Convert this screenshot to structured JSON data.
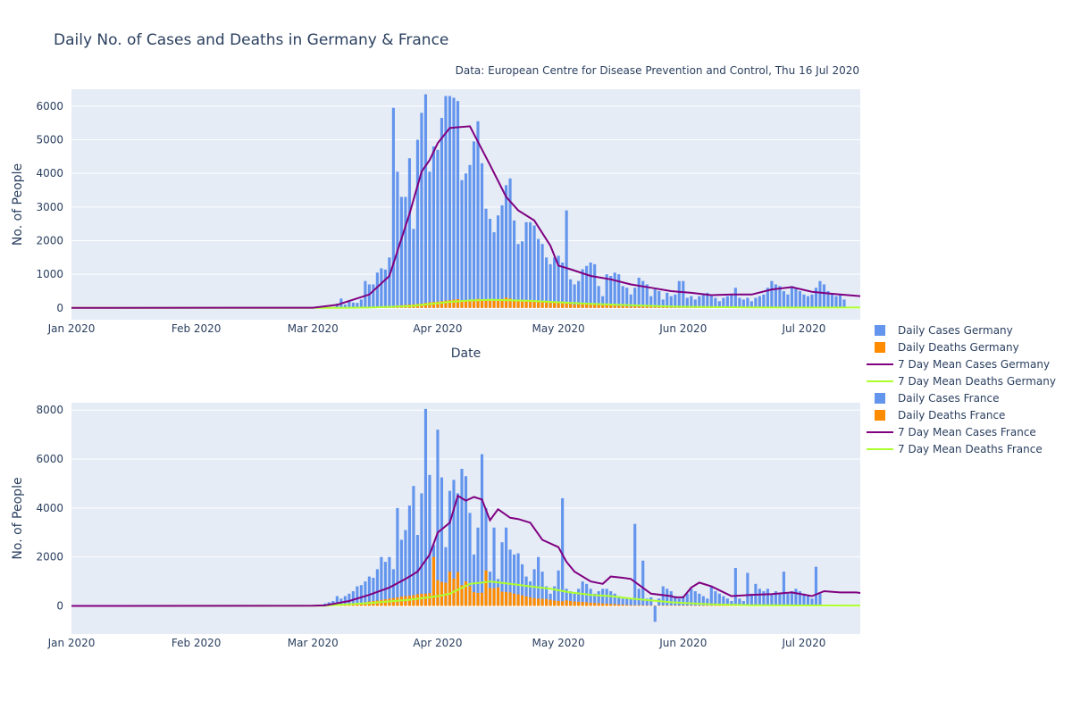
{
  "colors": {
    "daily_cases": "#6495ed",
    "daily_deaths": "#ff8c00",
    "mean_cases": "#800080",
    "mean_deaths": "#adff2f",
    "plot_bg": "#e5ecf6",
    "grid": "#ffffff",
    "text": "#2a3f5f"
  },
  "chart_data": {
    "type": "bar",
    "title": "Daily No. of Cases and Deaths in Germany & France",
    "source_note": "Data: European Centre for Disease Prevention and Control, Thu 16 Jul 2020",
    "x_ticks": [
      "Jan 2020",
      "Feb 2020",
      "Mar 2020",
      "Apr 2020",
      "May 2020",
      "Jun 2020",
      "Jul 2020"
    ],
    "x_tick_days": [
      1,
      32,
      61,
      92,
      122,
      153,
      183
    ],
    "x_range_days": [
      1,
      197
    ],
    "legend": [
      {
        "label": "Daily Cases Germany",
        "kind": "bar",
        "color_key": "daily_cases"
      },
      {
        "label": "Daily Deaths Germany",
        "kind": "bar",
        "color_key": "daily_deaths"
      },
      {
        "label": "7 Day Mean Cases Germany",
        "kind": "line",
        "color_key": "mean_cases"
      },
      {
        "label": "7 Day Mean Deaths Germany",
        "kind": "line",
        "color_key": "mean_deaths"
      },
      {
        "label": "Daily Cases France",
        "kind": "bar",
        "color_key": "daily_cases"
      },
      {
        "label": "Daily Deaths France",
        "kind": "bar",
        "color_key": "daily_deaths"
      },
      {
        "label": "7 Day Mean Cases France",
        "kind": "line",
        "color_key": "mean_cases"
      },
      {
        "label": "7 Day Mean Deaths France",
        "kind": "line",
        "color_key": "mean_deaths"
      }
    ],
    "subplots": [
      {
        "country": "Germany",
        "xlabel": "Date",
        "ylabel": "No. of People",
        "ylim": [
          -350,
          6500
        ],
        "y_ticks": [
          0,
          1000,
          2000,
          3000,
          4000,
          5000,
          6000
        ],
        "start_day": 67,
        "cases": [
          130,
          280,
          100,
          200,
          160,
          150,
          250,
          800,
          700,
          700,
          1050,
          1180,
          1140,
          1500,
          5950,
          4050,
          3300,
          3300,
          4450,
          2350,
          5000,
          5800,
          6350,
          4050,
          4800,
          4700,
          5650,
          6300,
          6300,
          6250,
          6150,
          3800,
          4000,
          4250,
          4950,
          5550,
          4300,
          2950,
          2650,
          2250,
          2750,
          3050,
          3650,
          3850,
          2600,
          1900,
          1980,
          2550,
          2550,
          2450,
          2050,
          1900,
          1500,
          1300,
          1500,
          1550,
          1350,
          2900,
          850,
          700,
          800,
          1150,
          1250,
          1350,
          1300,
          650,
          350,
          1000,
          950,
          1050,
          1000,
          650,
          600,
          400,
          600,
          900,
          800,
          700,
          350,
          550,
          500,
          250,
          450,
          350,
          400,
          800,
          800,
          300,
          350,
          250,
          350,
          400,
          450,
          350,
          300,
          200,
          300,
          350,
          400,
          600,
          300,
          250,
          300,
          200,
          300,
          350,
          400,
          600,
          800,
          700,
          650,
          500,
          400,
          650,
          600,
          500,
          400,
          350,
          400,
          600,
          800,
          700,
          500,
          400,
          350,
          400,
          250
        ],
        "deaths": [
          1,
          1,
          2,
          2,
          3,
          5,
          6,
          10,
          15,
          20,
          25,
          30,
          40,
          50,
          60,
          70,
          80,
          90,
          100,
          110,
          120,
          130,
          150,
          170,
          180,
          190,
          200,
          220,
          230,
          250,
          260,
          210,
          220,
          230,
          250,
          270,
          240,
          230,
          220,
          210,
          250,
          270,
          310,
          280,
          220,
          200,
          190,
          220,
          230,
          210,
          200,
          190,
          170,
          150,
          160,
          170,
          140,
          150,
          120,
          100,
          110,
          130,
          140,
          120,
          110,
          100,
          80,
          90,
          80,
          70,
          60,
          60,
          50,
          40,
          50,
          40,
          45,
          40,
          35,
          30,
          30,
          25,
          25,
          20,
          20,
          25,
          25,
          20,
          15,
          15,
          15,
          15,
          20,
          15,
          15,
          10,
          10,
          10,
          10,
          15,
          10,
          10,
          10,
          10,
          10,
          10,
          10,
          10,
          10,
          10,
          10,
          10,
          10,
          10,
          10,
          10,
          10,
          10,
          10,
          10,
          10,
          10,
          10,
          10,
          10,
          10,
          10,
          10,
          10,
          10
        ],
        "mean_cases_x": [
          1,
          61,
          67,
          75,
          80,
          85,
          88,
          90,
          92,
          95,
          100,
          105,
          109,
          112,
          116,
          120,
          122,
          125,
          130,
          135,
          140,
          145,
          150,
          155,
          160,
          165,
          170,
          175,
          180,
          185,
          190,
          194,
          197
        ],
        "mean_cases_y": [
          0,
          5,
          90,
          400,
          950,
          2800,
          4050,
          4400,
          4900,
          5350,
          5400,
          4250,
          3300,
          2900,
          2600,
          1850,
          1260,
          1150,
          950,
          850,
          700,
          600,
          500,
          450,
          380,
          400,
          400,
          550,
          620,
          480,
          420,
          380,
          350
        ],
        "mean_deaths_x": [
          1,
          67,
          75,
          85,
          95,
          100,
          105,
          110,
          115,
          120,
          130,
          140,
          150,
          160,
          170,
          180,
          197
        ],
        "mean_deaths_y": [
          0,
          1,
          10,
          50,
          180,
          220,
          240,
          230,
          210,
          180,
          120,
          80,
          40,
          25,
          15,
          10,
          10
        ]
      },
      {
        "country": "France",
        "xlabel": "",
        "ylabel": "No. of People",
        "ylim": [
          -1150,
          8300
        ],
        "y_ticks": [
          0,
          2000,
          4000,
          6000,
          8000
        ],
        "start_day": 64,
        "cases": [
          100,
          150,
          200,
          400,
          300,
          400,
          500,
          600,
          800,
          850,
          1000,
          1200,
          1150,
          1500,
          2000,
          1800,
          2000,
          1500,
          4000,
          2700,
          3100,
          4100,
          4900,
          2900,
          4600,
          8050,
          5350,
          2500,
          7200,
          5250,
          2400,
          4700,
          5150,
          4600,
          5600,
          5300,
          3800,
          2100,
          3200,
          6200,
          4000,
          1400,
          3200,
          1100,
          2600,
          3200,
          2300,
          2100,
          2150,
          1700,
          1200,
          1000,
          1500,
          2000,
          1400,
          800,
          500,
          800,
          1450,
          4400,
          700,
          600,
          500,
          700,
          1000,
          900,
          700,
          500,
          600,
          700,
          700,
          600,
          500,
          400,
          300,
          300,
          300,
          3350,
          700,
          1850,
          300,
          350,
          -650,
          300,
          800,
          700,
          600,
          400,
          300,
          400,
          500,
          700,
          600,
          500,
          400,
          300,
          800,
          600,
          500,
          400,
          300,
          200,
          1550,
          300,
          200,
          1350,
          500,
          900,
          700,
          600,
          700,
          500,
          600,
          500,
          1400,
          500,
          600,
          700,
          600,
          500,
          400,
          300,
          1600,
          500
        ],
        "deaths": [
          5,
          10,
          15,
          20,
          30,
          50,
          60,
          80,
          100,
          120,
          150,
          180,
          200,
          220,
          250,
          270,
          300,
          320,
          350,
          380,
          400,
          420,
          440,
          480,
          500,
          500,
          520,
          2000,
          1050,
          980,
          950,
          1400,
          1120,
          1380,
          850,
          1000,
          800,
          560,
          530,
          540,
          1450,
          730,
          720,
          760,
          580,
          570,
          550,
          500,
          470,
          430,
          390,
          350,
          320,
          300,
          290,
          280,
          250,
          220,
          200,
          190,
          230,
          200,
          180,
          170,
          160,
          150,
          130,
          120,
          110,
          100,
          90,
          80,
          70,
          60,
          50,
          40,
          30,
          25,
          30,
          25,
          20,
          20,
          20,
          20,
          20,
          20,
          20,
          15,
          15,
          15,
          15,
          15,
          15,
          15,
          15,
          15,
          15,
          15,
          15,
          15,
          15,
          15,
          15,
          15,
          15,
          15,
          15,
          15,
          15,
          15,
          15,
          15,
          15,
          15,
          15,
          15,
          15,
          15,
          15,
          15,
          15,
          15,
          15,
          15,
          15,
          15,
          15,
          15,
          15,
          15
        ],
        "mean_cases_x": [
          1,
          61,
          64,
          70,
          75,
          80,
          84,
          87,
          90,
          92,
          95,
          97,
          99,
          101,
          103,
          105,
          107,
          110,
          112,
          115,
          118,
          122,
          124,
          126,
          130,
          133,
          135,
          138,
          140,
          145,
          150,
          151,
          153,
          155,
          157,
          160,
          165,
          170,
          175,
          180,
          185,
          188,
          192,
          196,
          197
        ],
        "mean_cases_y": [
          0,
          5,
          20,
          200,
          450,
          750,
          1100,
          1400,
          2100,
          3000,
          3400,
          4500,
          4300,
          4450,
          4350,
          3500,
          3950,
          3600,
          3550,
          3400,
          2700,
          2400,
          1800,
          1400,
          1000,
          900,
          1200,
          1150,
          1100,
          500,
          400,
          350,
          350,
          750,
          950,
          800,
          400,
          450,
          480,
          550,
          400,
          600,
          550,
          550,
          530
        ],
        "mean_deaths_x": [
          1,
          64,
          75,
          85,
          92,
          95,
          100,
          103,
          105,
          110,
          115,
          120,
          125,
          130,
          135,
          140,
          150,
          160,
          170,
          180,
          197
        ],
        "mean_deaths_y": [
          0,
          5,
          120,
          250,
          400,
          500,
          900,
          950,
          1000,
          900,
          800,
          700,
          550,
          450,
          400,
          300,
          150,
          60,
          30,
          20,
          15
        ]
      }
    ]
  }
}
